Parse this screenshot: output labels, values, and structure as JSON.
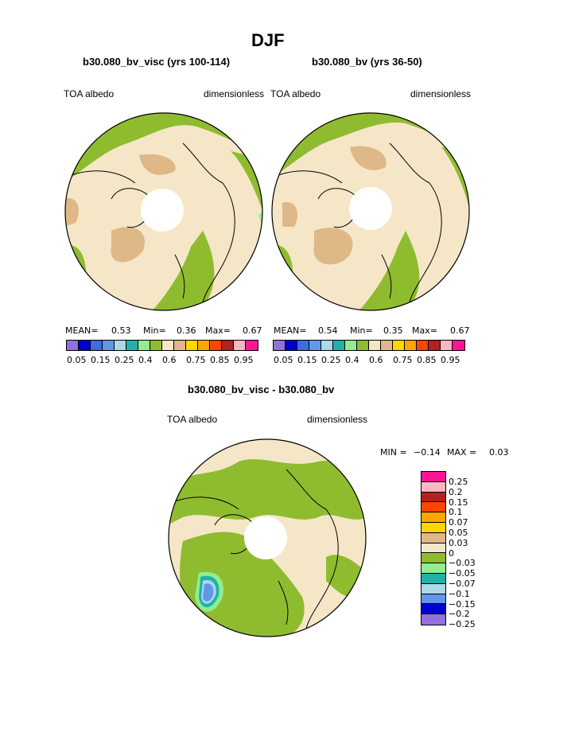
{
  "page": {
    "title": "DJF",
    "panel1_title": "b30.080_bv_visc (yrs 100-114)",
    "panel2_title": "b30.080_bv (yrs 36-50)",
    "panel3_title": "b30.080_bv_visc - b30.080_bv"
  },
  "panels": [
    {
      "left_label": "TOA albedo",
      "right_label": "dimensionless",
      "stats": {
        "mean_label": "MEAN=",
        "mean": "0.53",
        "min_label": "Min=",
        "min": "0.36",
        "max_label": "Max=",
        "max": "0.67"
      }
    },
    {
      "left_label": "TOA albedo",
      "right_label": "dimensionless",
      "stats": {
        "mean_label": "MEAN=",
        "mean": "0.54",
        "min_label": "Min=",
        "min": "0.35",
        "max_label": "Max=",
        "max": "0.67"
      }
    },
    {
      "left_label": "TOA albedo",
      "right_label": "dimensionless",
      "stats": {
        "min_label": "MIN =",
        "min": "−0.14",
        "max_label": "MAX =",
        "max": "0.03"
      }
    }
  ],
  "colorbar_main": {
    "colors": [
      "#9370db",
      "#0000cd",
      "#4169e1",
      "#6495ed",
      "#add8e6",
      "#20b2aa",
      "#90ee90",
      "#8fbc2f",
      "#f5e6c8",
      "#deb887",
      "#ffd700",
      "#ffa500",
      "#ff4500",
      "#b22222",
      "#ffb6c1",
      "#ff1493"
    ],
    "tick_labels": [
      "0.05",
      "0.15",
      "0.25",
      "0.4",
      "0.6",
      "0.75",
      "0.85",
      "0.95"
    ]
  },
  "colorbar_diff": {
    "colors": [
      "#ff1493",
      "#ffb6c1",
      "#b22222",
      "#ff4500",
      "#ffa500",
      "#ffd700",
      "#deb887",
      "#f5e6c8",
      "#8fbc2f",
      "#90ee90",
      "#20b2aa",
      "#add8e6",
      "#6495ed",
      "#0000cd",
      "#9370db"
    ],
    "labels": [
      "0.25",
      "0.2",
      "0.15",
      "0.1",
      "0.07",
      "0.05",
      "0.03",
      "0",
      "−0.03",
      "−0.05",
      "−0.07",
      "−0.1",
      "−0.15",
      "−0.2",
      "−0.25"
    ]
  }
}
